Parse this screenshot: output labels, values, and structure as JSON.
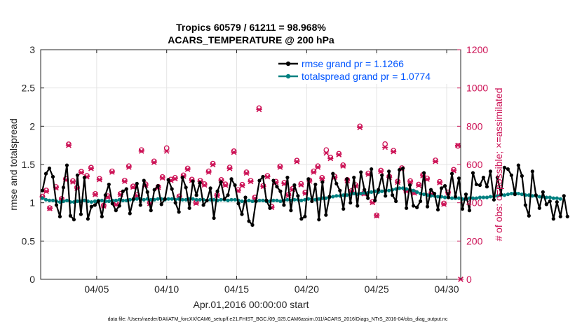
{
  "chart_data": {
    "type": "line",
    "title_line1": "Tropics 60579 / 61211 = 98.968%",
    "title_line2": "ACARS_TEMPERATURE @ 200 hPa",
    "xlabel": "Apr.01,2016 00:00:00 start",
    "ylabel_left": "rmse and totalspread",
    "ylabel_right": "# of obs: o=possible; ×=assimilated",
    "footnote": "data file: /Users/raeder/DAI/ATM_forcXX/CAM6_setup/f.e21.FHIST_BGC.f09_025.CAM6assim.011/ACARS_2016/Diags_NTrS_2016-04/obs_diag_output.nc",
    "xlim": [
      1.0,
      31.0
    ],
    "ylim_left": [
      0,
      3
    ],
    "ylim_right": [
      0,
      1200
    ],
    "x_ticks": [
      {
        "value": 5,
        "label": "04/05"
      },
      {
        "value": 10,
        "label": "04/10"
      },
      {
        "value": 15,
        "label": "04/15"
      },
      {
        "value": 20,
        "label": "04/20"
      },
      {
        "value": 25,
        "label": "04/25"
      },
      {
        "value": 30,
        "label": "04/30"
      }
    ],
    "y_ticks_left": [
      "0",
      "0.5",
      "1",
      "1.5",
      "2",
      "2.5",
      "3"
    ],
    "y_ticks_right": [
      "0",
      "200",
      "400",
      "600",
      "800",
      "1000",
      "1200"
    ],
    "colors": {
      "rmse": "#000000",
      "spread": "#008080",
      "obs": "#cc1155",
      "legend_text": "#0055ff",
      "grid": "#e4e4e4"
    },
    "series": [
      {
        "name": "rmse grand pr = 1.1266",
        "axis": "left",
        "start": 1.125,
        "step": 0.25,
        "values": [
          1.16,
          1.38,
          1.45,
          1.34,
          0.97,
          0.82,
          1.2,
          1.49,
          0.83,
          0.78,
          1.36,
          0.85,
          1.33,
          0.79,
          0.95,
          0.97,
          1.02,
          0.82,
          1.1,
          1.24,
          0.99,
          0.9,
          0.96,
          1.15,
          1.18,
          0.86,
          1.05,
          1.25,
          0.97,
          1.29,
          1.14,
          0.9,
          1.17,
          1.22,
          0.98,
          1.05,
          1.3,
          1.18,
          1.0,
          0.88,
          1.33,
          1.2,
          0.93,
          1.28,
          1.1,
          1.26,
          0.97,
          1.03,
          1.19,
          0.8,
          1.15,
          1.27,
          1.05,
          1.1,
          1.31,
          1.23,
          0.99,
          0.85,
          1.07,
          0.76,
          0.71,
          1.02,
          1.29,
          1.34,
          1.03,
          0.93,
          1.29,
          1.21,
          1.15,
          0.97,
          1.33,
          0.9,
          1.23,
          1.09,
          0.79,
          0.82,
          1.31,
          1.02,
          1.24,
          0.78,
          1.27,
          0.84,
          1.08,
          1.38,
          1.25,
          1.16,
          0.92,
          1.31,
          1.0,
          1.33,
          0.96,
          1.4,
          1.17,
          1.06,
          1.44,
          1.03,
          1.17,
          1.36,
          1.09,
          1.41,
          1.1,
          1.02,
          1.43,
          1.45,
          0.93,
          1.23,
          0.96,
          0.94,
          1.02,
          1.39,
          0.95,
          1.17,
          1.12,
          0.91,
          1.19,
          1.22,
          1.07,
          1.38,
          1.08,
          1.32,
          0.92,
          1.11,
          0.9,
          1.39,
          1.24,
          1.23,
          1.33,
          1.21,
          1.41,
          1.04,
          1.33,
          1.11,
          1.46,
          1.44,
          1.36,
          1.11,
          1.49,
          1.35,
          0.97,
          0.83,
          1.41,
          1.1,
          0.93,
          1.14,
          0.98,
          1.02,
          0.79,
          1.01,
          0.82,
          1.09,
          0.82
        ]
      },
      {
        "name": "totalspread grand pr = 1.0774",
        "axis": "left",
        "start": 1.125,
        "step": 0.25,
        "values": [
          1.06,
          1.04,
          1.03,
          1.03,
          1.02,
          1.01,
          1.02,
          1.03,
          1.01,
          1.01,
          1.02,
          1.02,
          1.03,
          1.02,
          1.01,
          1.02,
          1.03,
          1.03,
          1.02,
          1.02,
          1.03,
          1.03,
          1.04,
          1.03,
          1.03,
          1.04,
          1.04,
          1.05,
          1.05,
          1.04,
          1.05,
          1.04,
          1.04,
          1.05,
          1.05,
          1.04,
          1.05,
          1.05,
          1.04,
          1.05,
          1.04,
          1.04,
          1.05,
          1.05,
          1.04,
          1.04,
          1.04,
          1.03,
          1.04,
          1.04,
          1.03,
          1.04,
          1.04,
          1.03,
          1.04,
          1.04,
          1.03,
          1.02,
          1.02,
          1.03,
          1.02,
          1.02,
          1.03,
          1.03,
          1.02,
          1.02,
          1.03,
          1.03,
          1.02,
          1.03,
          1.04,
          1.03,
          1.04,
          1.04,
          1.03,
          1.04,
          1.05,
          1.05,
          1.04,
          1.05,
          1.06,
          1.06,
          1.07,
          1.08,
          1.09,
          1.09,
          1.1,
          1.1,
          1.11,
          1.12,
          1.11,
          1.12,
          1.13,
          1.13,
          1.14,
          1.15,
          1.14,
          1.15,
          1.16,
          1.16,
          1.17,
          1.18,
          1.19,
          1.19,
          1.18,
          1.17,
          1.16,
          1.14,
          1.12,
          1.11,
          1.1,
          1.09,
          1.09,
          1.08,
          1.08,
          1.07,
          1.07,
          1.06,
          1.06,
          1.06,
          1.05,
          1.05,
          1.06,
          1.06,
          1.06,
          1.07,
          1.07,
          1.07,
          1.08,
          1.08,
          1.09,
          1.1,
          1.1,
          1.11,
          1.12,
          1.13,
          1.12,
          1.11,
          1.1,
          1.1,
          1.09,
          1.09,
          1.08,
          1.08,
          1.07,
          1.07,
          1.06,
          1.06,
          1.05
        ]
      }
    ],
    "obs_possible": {
      "axis": "right",
      "points": [
        [
          1.125,
          433
        ],
        [
          1.4,
          465
        ],
        [
          1.65,
          373
        ],
        [
          2.1,
          483
        ],
        [
          2.5,
          421
        ],
        [
          2.8,
          525
        ],
        [
          3.0,
          706
        ],
        [
          3.3,
          514
        ],
        [
          3.6,
          480
        ],
        [
          3.9,
          563
        ],
        [
          4.3,
          541
        ],
        [
          4.6,
          584
        ],
        [
          4.9,
          447
        ],
        [
          5.2,
          526
        ],
        [
          5.5,
          386
        ],
        [
          5.8,
          435
        ],
        [
          6.1,
          565
        ],
        [
          6.4,
          395
        ],
        [
          6.7,
          447
        ],
        [
          7.0,
          517
        ],
        [
          7.3,
          592
        ],
        [
          7.6,
          486
        ],
        [
          7.9,
          441
        ],
        [
          8.2,
          676
        ],
        [
          8.5,
          497
        ],
        [
          8.8,
          400
        ],
        [
          9.1,
          617
        ],
        [
          9.4,
          484
        ],
        [
          9.7,
          535
        ],
        [
          10.0,
          686
        ],
        [
          10.3,
          522
        ],
        [
          10.6,
          531
        ],
        [
          10.9,
          434
        ],
        [
          11.2,
          544
        ],
        [
          11.5,
          580
        ],
        [
          11.8,
          522
        ],
        [
          12.1,
          402
        ],
        [
          12.4,
          516
        ],
        [
          12.7,
          498
        ],
        [
          13.0,
          565
        ],
        [
          13.3,
          605
        ],
        [
          13.6,
          441
        ],
        [
          13.9,
          520
        ],
        [
          14.2,
          497
        ],
        [
          14.5,
          585
        ],
        [
          14.8,
          670
        ],
        [
          15.1,
          467
        ],
        [
          15.4,
          495
        ],
        [
          15.7,
          560
        ],
        [
          16.0,
          516
        ],
        [
          16.3,
          428
        ],
        [
          16.6,
          895
        ],
        [
          16.9,
          489
        ],
        [
          17.2,
          541
        ],
        [
          17.5,
          380
        ],
        [
          17.8,
          511
        ],
        [
          18.1,
          591
        ],
        [
          18.4,
          505
        ],
        [
          18.7,
          443
        ],
        [
          19.0,
          474
        ],
        [
          19.3,
          621
        ],
        [
          19.6,
          499
        ],
        [
          19.9,
          454
        ],
        [
          20.2,
          518
        ],
        [
          20.5,
          565
        ],
        [
          20.8,
          592
        ],
        [
          21.1,
          531
        ],
        [
          21.4,
          676
        ],
        [
          21.7,
          637
        ],
        [
          22.0,
          538
        ],
        [
          22.3,
          657
        ],
        [
          22.6,
          597
        ],
        [
          22.9,
          520
        ],
        [
          23.2,
          462
        ],
        [
          23.5,
          493
        ],
        [
          23.8,
          800
        ],
        [
          24.1,
          451
        ],
        [
          24.4,
          554
        ],
        [
          24.7,
          405
        ],
        [
          25.0,
          335
        ],
        [
          25.3,
          569
        ],
        [
          25.6,
          707
        ],
        [
          25.9,
          538
        ],
        [
          26.2,
          673
        ],
        [
          26.5,
          512
        ],
        [
          26.8,
          582
        ],
        [
          27.1,
          466
        ],
        [
          27.4,
          514
        ],
        [
          27.7,
          455
        ],
        [
          28.0,
          496
        ],
        [
          28.3,
          546
        ],
        [
          28.6,
          528
        ],
        [
          28.9,
          451
        ],
        [
          29.2,
          622
        ],
        [
          29.5,
          510
        ],
        [
          29.8,
          397
        ],
        [
          30.1,
          455
        ],
        [
          30.5,
          573
        ],
        [
          30.8,
          697
        ]
      ]
    },
    "obs_assimilated": {
      "axis": "right",
      "points": [
        [
          1.125,
          430
        ],
        [
          1.4,
          460
        ],
        [
          1.65,
          370
        ],
        [
          2.1,
          478
        ],
        [
          2.5,
          417
        ],
        [
          2.8,
          520
        ],
        [
          3.0,
          700
        ],
        [
          3.3,
          509
        ],
        [
          3.6,
          476
        ],
        [
          3.9,
          558
        ],
        [
          4.3,
          536
        ],
        [
          4.6,
          579
        ],
        [
          4.9,
          443
        ],
        [
          5.2,
          521
        ],
        [
          5.5,
          383
        ],
        [
          5.8,
          431
        ],
        [
          6.1,
          560
        ],
        [
          6.4,
          391
        ],
        [
          6.7,
          443
        ],
        [
          7.0,
          512
        ],
        [
          7.3,
          586
        ],
        [
          7.6,
          482
        ],
        [
          7.9,
          437
        ],
        [
          8.2,
          670
        ],
        [
          8.5,
          492
        ],
        [
          8.8,
          396
        ],
        [
          9.1,
          611
        ],
        [
          9.4,
          480
        ],
        [
          9.7,
          530
        ],
        [
          10.0,
          670
        ],
        [
          10.3,
          517
        ],
        [
          10.6,
          526
        ],
        [
          10.9,
          430
        ],
        [
          11.2,
          539
        ],
        [
          11.5,
          575
        ],
        [
          11.8,
          517
        ],
        [
          12.1,
          398
        ],
        [
          12.4,
          511
        ],
        [
          12.7,
          493
        ],
        [
          13.0,
          560
        ],
        [
          13.3,
          599
        ],
        [
          13.6,
          437
        ],
        [
          13.9,
          515
        ],
        [
          14.2,
          492
        ],
        [
          14.5,
          579
        ],
        [
          14.8,
          664
        ],
        [
          15.1,
          463
        ],
        [
          15.4,
          490
        ],
        [
          15.7,
          555
        ],
        [
          16.0,
          511
        ],
        [
          16.3,
          424
        ],
        [
          16.6,
          887
        ],
        [
          16.9,
          485
        ],
        [
          17.2,
          536
        ],
        [
          17.5,
          376
        ],
        [
          17.8,
          506
        ],
        [
          18.1,
          586
        ],
        [
          18.4,
          500
        ],
        [
          18.7,
          439
        ],
        [
          19.0,
          470
        ],
        [
          19.3,
          615
        ],
        [
          19.6,
          494
        ],
        [
          19.9,
          450
        ],
        [
          20.2,
          513
        ],
        [
          20.5,
          560
        ],
        [
          20.8,
          586
        ],
        [
          21.1,
          526
        ],
        [
          21.4,
          660
        ],
        [
          21.7,
          631
        ],
        [
          22.0,
          533
        ],
        [
          22.3,
          651
        ],
        [
          22.6,
          592
        ],
        [
          22.9,
          515
        ],
        [
          23.2,
          458
        ],
        [
          23.5,
          488
        ],
        [
          23.8,
          793
        ],
        [
          24.1,
          447
        ],
        [
          24.4,
          549
        ],
        [
          24.7,
          401
        ],
        [
          25.0,
          332
        ],
        [
          25.3,
          564
        ],
        [
          25.6,
          690
        ],
        [
          25.9,
          533
        ],
        [
          26.2,
          667
        ],
        [
          26.5,
          507
        ],
        [
          26.8,
          577
        ],
        [
          27.1,
          462
        ],
        [
          27.4,
          509
        ],
        [
          27.7,
          451
        ],
        [
          28.0,
          491
        ],
        [
          28.3,
          541
        ],
        [
          28.6,
          523
        ],
        [
          28.9,
          447
        ],
        [
          29.2,
          616
        ],
        [
          29.5,
          505
        ],
        [
          29.8,
          393
        ],
        [
          30.1,
          451
        ],
        [
          30.5,
          568
        ],
        [
          30.8,
          700
        ],
        [
          31.0,
          0
        ]
      ]
    }
  }
}
